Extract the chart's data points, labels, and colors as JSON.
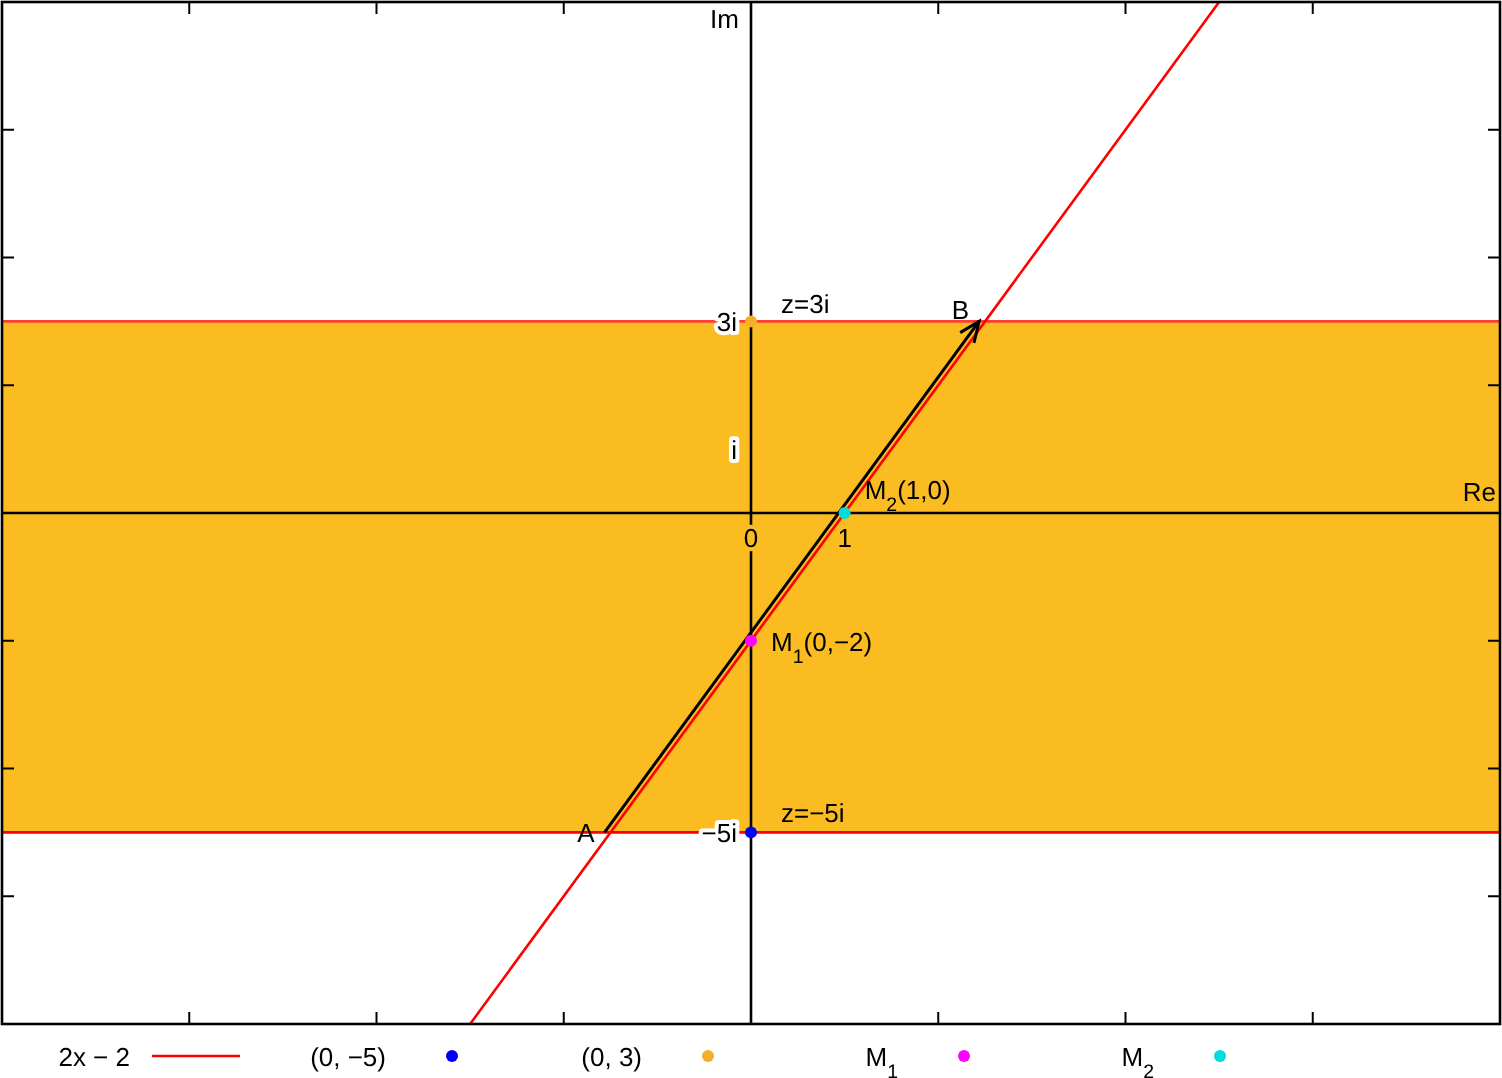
{
  "chart_data": {
    "type": "line",
    "xlim": [
      -8,
      8
    ],
    "ylim": [
      -8,
      8
    ],
    "xticks": [
      {
        "value": -6,
        "label": null
      },
      {
        "value": -4,
        "label": null
      },
      {
        "value": -2,
        "label": null
      },
      {
        "value": 0,
        "label": "0"
      },
      {
        "value": 1,
        "label": "1"
      },
      {
        "value": 2,
        "label": null
      },
      {
        "value": 4,
        "label": null
      },
      {
        "value": 6,
        "label": null
      }
    ],
    "yticks": [
      {
        "value": -6,
        "label": null
      },
      {
        "value": -5,
        "label": "−5i"
      },
      {
        "value": -4,
        "label": null
      },
      {
        "value": -2,
        "label": null
      },
      {
        "value": 1,
        "label": "i"
      },
      {
        "value": 2,
        "label": null
      },
      {
        "value": 3,
        "label": "3i"
      },
      {
        "value": 4,
        "label": null
      },
      {
        "value": 6,
        "label": null
      }
    ],
    "xlabel": "Re",
    "ylabel": "Im",
    "grid": false,
    "legend": "bottom",
    "series": [
      {
        "name": "2x − 2",
        "color": "#ff0000",
        "x": [
          -3,
          5
        ],
        "values": [
          -8,
          8
        ],
        "marker": "none"
      },
      {
        "name": "(0, −5)",
        "type": "scatter",
        "color": "#0000ff",
        "x": [
          0
        ],
        "values": [
          -5
        ],
        "marker": "circle"
      },
      {
        "name": "(0, 3)",
        "type": "scatter",
        "color": "#f5ae2a",
        "x": [
          0
        ],
        "values": [
          3
        ],
        "marker": "circle"
      },
      {
        "name": "M$_{1}$",
        "type": "scatter",
        "color": "#ff00ff",
        "x": [
          0
        ],
        "values": [
          -2
        ],
        "marker": "circle"
      },
      {
        "name": "M$_{2}$",
        "type": "scatter",
        "color": "#00dddd",
        "x": [
          1
        ],
        "values": [
          0
        ],
        "marker": "circle"
      }
    ],
    "bands": [
      {
        "axis": "y",
        "from": -5,
        "to": 3,
        "color": "#fbbc22"
      }
    ],
    "ref_lines": [
      {
        "axis": "y",
        "value": 3,
        "color": "#ff3c3c"
      },
      {
        "axis": "y",
        "value": -5,
        "color": "#ff0000"
      }
    ],
    "annotations": [
      {
        "text": "A",
        "x": -1.5,
        "y": -5
      },
      {
        "text": "B",
        "x": 2.5,
        "y": 3
      },
      {
        "text": "z=3i",
        "x": 0,
        "y": 3
      },
      {
        "text": "z=−5i",
        "x": 0,
        "y": -5
      },
      {
        "text": "M$_{1}$(0,−2)",
        "x": 0,
        "y": -2
      },
      {
        "text": "M$_{2}$(1,0)",
        "x": 1,
        "y": 0
      }
    ]
  }
}
